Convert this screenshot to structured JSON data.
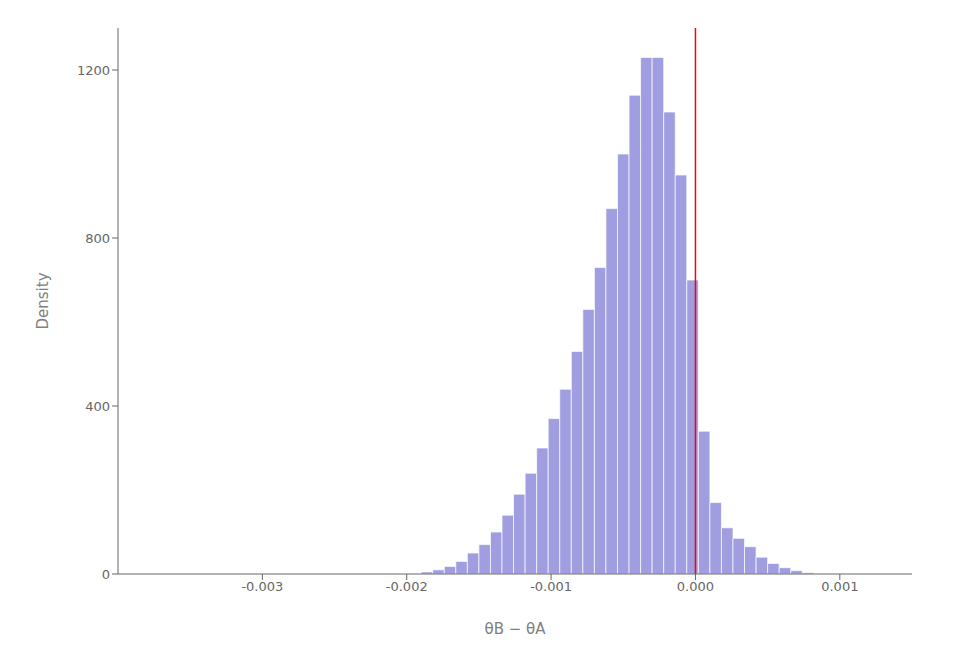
{
  "chart_data": {
    "type": "histogram",
    "title": "",
    "xlabel": "θB − θA",
    "ylabel": "Density",
    "bins": [
      -0.0019,
      -0.00182,
      -0.00174,
      -0.00166,
      -0.00158,
      -0.0015,
      -0.00142,
      -0.00134,
      -0.00126,
      -0.00118,
      -0.0011,
      -0.00102,
      -0.00094,
      -0.00086,
      -0.00078,
      -0.0007,
      -0.00062,
      -0.00054,
      -0.00046,
      -0.00038,
      -0.0003,
      -0.00022,
      -0.00014,
      -6e-05,
      2e-05,
      0.0001,
      0.00018,
      0.00026,
      0.00034,
      0.00042,
      0.0005,
      0.00058,
      0.00066,
      0.00074,
      0.00082
    ],
    "values": [
      5,
      10,
      18,
      30,
      50,
      70,
      100,
      140,
      190,
      240,
      300,
      370,
      440,
      530,
      630,
      730,
      870,
      1000,
      1140,
      1230,
      1230,
      1100,
      950,
      700,
      340,
      170,
      110,
      85,
      65,
      40,
      25,
      15,
      8,
      3
    ],
    "color": "#8884d8",
    "xlim": [
      -0.004,
      0.0015
    ],
    "ylim": [
      0,
      1300
    ],
    "xticks": [
      -0.003,
      -0.002,
      -0.001,
      {
        "value": 0,
        "label": "0.000"
      },
      0.001
    ],
    "yticks": [
      0,
      400,
      800,
      1200
    ],
    "vline": {
      "x": 0,
      "color": "red"
    },
    "grid": false
  }
}
